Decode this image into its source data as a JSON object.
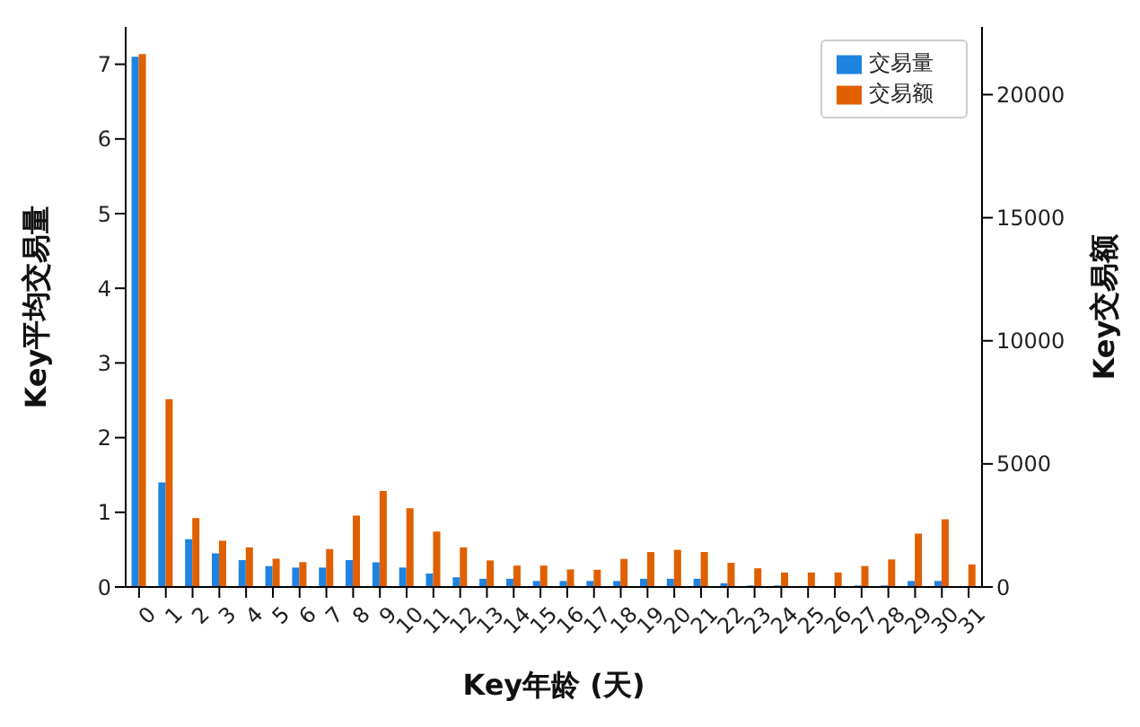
{
  "chart_data": {
    "type": "bar",
    "xlabel": "Key年龄 (天)",
    "ylabel": "Key平均交易量",
    "y2label": "Key交易额",
    "categories": [
      "0",
      "1",
      "2",
      "3",
      "4",
      "5",
      "6",
      "7",
      "8",
      "9",
      "10",
      "11",
      "12",
      "13",
      "14",
      "15",
      "16",
      "17",
      "18",
      "19",
      "20",
      "21",
      "22",
      "23",
      "24",
      "25",
      "26",
      "27",
      "28",
      "29",
      "30",
      "31"
    ],
    "series": [
      {
        "name": "交易量",
        "color": "#1f83e0",
        "values": [
          7.1,
          1.4,
          0.64,
          0.45,
          0.36,
          0.28,
          0.26,
          0.26,
          0.36,
          0.33,
          0.26,
          0.18,
          0.13,
          0.11,
          0.11,
          0.08,
          0.08,
          0.08,
          0.08,
          0.11,
          0.11,
          0.11,
          0.05,
          0.02,
          0.02,
          0,
          0,
          0.02,
          0.02,
          0.08,
          0.08,
          0
        ]
      },
      {
        "name": "交易额",
        "color": "#e06000",
        "axis": "y2",
        "values": [
          21650,
          7630,
          2800,
          1880,
          1610,
          1150,
          1010,
          1540,
          2900,
          3900,
          3200,
          2250,
          1610,
          1080,
          870,
          870,
          715,
          700,
          1140,
          1420,
          1510,
          1420,
          980,
          760,
          590,
          590,
          590,
          850,
          1120,
          2170,
          2750,
          915
        ]
      }
    ],
    "ylim": [
      0,
      7.5
    ],
    "yticks": [
      0,
      1,
      2,
      3,
      4,
      5,
      6,
      7
    ],
    "y2lim": [
      0,
      22750
    ],
    "y2ticks": [
      0,
      5000,
      10000,
      15000,
      20000
    ],
    "legend": "top right",
    "grid": false
  }
}
